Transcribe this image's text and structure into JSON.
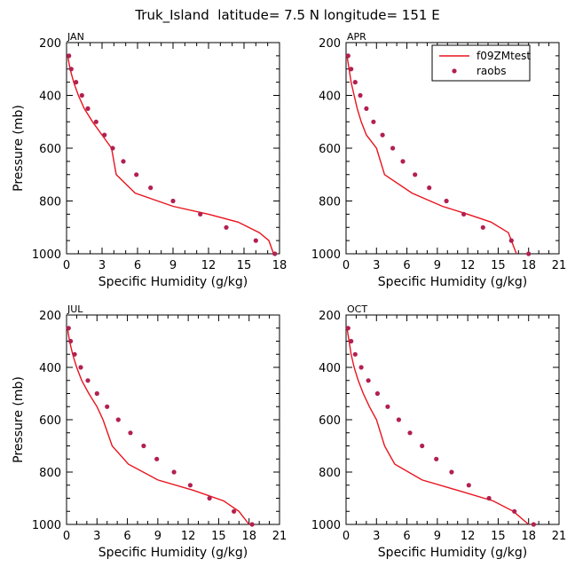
{
  "figure": {
    "title": "Truk_Island  latitude= 7.5 N longitude= 151 E"
  },
  "legend": {
    "model_label": "f09ZMtest",
    "obs_label": "raobs"
  },
  "colors": {
    "model": "#e8141e",
    "obs": "#b22050",
    "axis": "#000000"
  },
  "chart_data": [
    {
      "type": "line",
      "panel": "JAN",
      "xlabel": "Specific Humidity (g/kg)",
      "ylabel": "Pressure (mb)",
      "xlim": [
        0,
        18
      ],
      "ylim": [
        1000,
        200
      ],
      "xticks": [
        0,
        3,
        6,
        9,
        12,
        15,
        18
      ],
      "yticks": [
        200,
        400,
        600,
        800,
        1000
      ],
      "legend": false,
      "series": [
        {
          "name": "f09ZMtest",
          "kind": "line",
          "x": [
            0.1,
            0.3,
            0.6,
            1.0,
            1.5,
            2.2,
            3.0,
            3.8,
            4.2,
            5.8,
            9.0,
            12.0,
            14.5,
            16.3,
            17.1,
            17.5
          ],
          "y": [
            250,
            300,
            350,
            400,
            450,
            500,
            550,
            600,
            700,
            770,
            820,
            850,
            880,
            920,
            950,
            1000
          ]
        },
        {
          "name": "raobs",
          "kind": "scatter",
          "x": [
            0.2,
            0.4,
            0.8,
            1.3,
            1.8,
            2.5,
            3.2,
            3.9,
            4.8,
            5.9,
            7.1,
            9.0,
            11.3,
            13.5,
            16.0,
            17.6
          ],
          "y": [
            250,
            300,
            350,
            400,
            450,
            500,
            550,
            600,
            650,
            700,
            750,
            800,
            850,
            900,
            950,
            1000
          ]
        }
      ]
    },
    {
      "type": "line",
      "panel": "APR",
      "xlabel": "Specific Humidity (g/kg)",
      "ylabel": "",
      "xlim": [
        0,
        21
      ],
      "ylim": [
        1000,
        200
      ],
      "xticks": [
        0,
        3,
        6,
        9,
        12,
        15,
        18,
        21
      ],
      "yticks": [
        200,
        400,
        600,
        800,
        1000
      ],
      "legend": true,
      "series": [
        {
          "name": "f09ZMtest",
          "kind": "line",
          "x": [
            0.1,
            0.3,
            0.5,
            0.8,
            1.1,
            1.5,
            2.0,
            3.0,
            3.8,
            6.5,
            9.5,
            12.0,
            14.3,
            16.0,
            16.8
          ],
          "y": [
            250,
            300,
            350,
            400,
            450,
            500,
            550,
            600,
            700,
            770,
            820,
            850,
            880,
            920,
            1000
          ]
        },
        {
          "name": "raobs",
          "kind": "scatter",
          "x": [
            0.2,
            0.5,
            0.9,
            1.4,
            2.0,
            2.7,
            3.6,
            4.6,
            5.6,
            6.8,
            8.2,
            9.9,
            11.6,
            13.5,
            16.3,
            18.0
          ],
          "y": [
            250,
            300,
            350,
            400,
            450,
            500,
            550,
            600,
            650,
            700,
            750,
            800,
            850,
            900,
            950,
            1000
          ]
        }
      ]
    },
    {
      "type": "line",
      "panel": "JUL",
      "xlabel": "Specific Humidity (g/kg)",
      "ylabel": "Pressure (mb)",
      "xlim": [
        0,
        21
      ],
      "ylim": [
        1000,
        200
      ],
      "xticks": [
        0,
        3,
        6,
        9,
        12,
        15,
        18,
        21
      ],
      "yticks": [
        200,
        400,
        600,
        800,
        1000
      ],
      "legend": false,
      "series": [
        {
          "name": "f09ZMtest",
          "kind": "line",
          "x": [
            0.1,
            0.3,
            0.6,
            1.0,
            1.5,
            2.2,
            3.0,
            3.6,
            4.5,
            6.1,
            9.0,
            12.5,
            15.5,
            17.0,
            18.0
          ],
          "y": [
            250,
            300,
            350,
            400,
            450,
            500,
            550,
            600,
            700,
            770,
            830,
            870,
            910,
            950,
            1000
          ]
        },
        {
          "name": "raobs",
          "kind": "scatter",
          "x": [
            0.2,
            0.4,
            0.8,
            1.4,
            2.1,
            3.0,
            4.0,
            5.1,
            6.3,
            7.6,
            8.9,
            10.6,
            12.2,
            14.1,
            16.5,
            18.3
          ],
          "y": [
            250,
            300,
            350,
            400,
            450,
            500,
            550,
            600,
            650,
            700,
            750,
            800,
            850,
            900,
            950,
            1000
          ]
        }
      ]
    },
    {
      "type": "line",
      "panel": "OCT",
      "xlabel": "Specific Humidity (g/kg)",
      "ylabel": "",
      "xlim": [
        0,
        21
      ],
      "ylim": [
        1000,
        200
      ],
      "xticks": [
        0,
        3,
        6,
        9,
        12,
        15,
        18,
        21
      ],
      "yticks": [
        200,
        400,
        600,
        800,
        1000
      ],
      "legend": false,
      "series": [
        {
          "name": "f09ZMtest",
          "kind": "line",
          "x": [
            0.1,
            0.3,
            0.5,
            0.8,
            1.2,
            1.7,
            2.3,
            3.0,
            3.8,
            4.8,
            7.5,
            11.0,
            14.5,
            16.5,
            18.0
          ],
          "y": [
            250,
            300,
            350,
            400,
            450,
            500,
            550,
            600,
            700,
            770,
            830,
            870,
            910,
            950,
            1000
          ]
        },
        {
          "name": "raobs",
          "kind": "scatter",
          "x": [
            0.2,
            0.5,
            0.9,
            1.5,
            2.2,
            3.1,
            4.1,
            5.2,
            6.3,
            7.5,
            8.9,
            10.4,
            12.1,
            14.1,
            16.6,
            18.5
          ],
          "y": [
            250,
            300,
            350,
            400,
            450,
            500,
            550,
            600,
            650,
            700,
            750,
            800,
            850,
            900,
            950,
            1000
          ]
        }
      ]
    }
  ]
}
